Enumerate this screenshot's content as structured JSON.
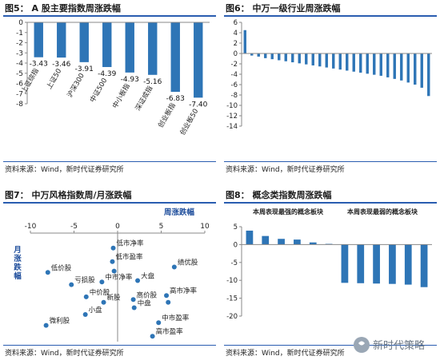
{
  "fig5": {
    "title": "图5： A 股主要指数周涨跌幅",
    "source": "资料来源：Wind，新时代证券研究所",
    "chart_data": {
      "type": "bar",
      "categories": [
        "上证综指",
        "上证50",
        "沪深300",
        "中证500",
        "中小板指",
        "深证成指",
        "创业板指",
        "创业板50"
      ],
      "values": [
        -3.43,
        -3.46,
        -3.91,
        -4.39,
        -4.93,
        -5.16,
        -6.83,
        -7.4
      ],
      "value_labels": [
        "-3.43",
        "-3.46",
        "-3.91",
        "-4.39",
        "-4.93",
        "-5.16",
        "-6.83",
        "-7.40"
      ],
      "ylim": [
        -8,
        0
      ],
      "yticks": [
        0,
        -1,
        -2,
        -3,
        -4,
        -5,
        -6,
        -7,
        -8
      ],
      "color": "#2e75b6"
    }
  },
  "fig6": {
    "title": "图6： 中万一级行业周涨跌幅",
    "source": "资料来源：Wind，新时代证券研究所",
    "chart_data": {
      "type": "bar",
      "categories": [
        "",
        "",
        "",
        "",
        "",
        "",
        "",
        "",
        "",
        "",
        "",
        "",
        "",
        "",
        "",
        "",
        "",
        "",
        "",
        "",
        "",
        "",
        "",
        "",
        "",
        "",
        "",
        ""
      ],
      "values": [
        4.5,
        -0.4,
        -0.6,
        -0.9,
        -1.1,
        -1.3,
        -1.5,
        -1.7,
        -1.9,
        -2.1,
        -2.3,
        -2.5,
        -2.7,
        -2.9,
        -3.1,
        -3.3,
        -3.5,
        -3.7,
        -3.9,
        -4.1,
        -4.3,
        -4.6,
        -4.9,
        -5.2,
        -5.6,
        -6.0,
        -6.6,
        -8.2
      ],
      "ylim": [
        -14,
        6
      ],
      "yticks": [
        6,
        4,
        2,
        0,
        -2,
        -4,
        -6,
        -8,
        -10,
        -12,
        -14
      ],
      "color": "#2e75b6"
    }
  },
  "fig7": {
    "title": "图7： 中万风格指数周/月涨跌幅",
    "source": "资料来源：Wind，新时代证券研究所",
    "chart_data": {
      "type": "scatter",
      "xlabel": "周涨跌幅",
      "ylabel": "月涨跌幅",
      "xlim": [
        -10,
        10
      ],
      "ylim": [
        -8,
        0
      ],
      "xticks": [
        -10,
        -5,
        0,
        5,
        10
      ],
      "points": [
        {
          "label": "低市净率",
          "x": -0.5,
          "y": -1.1
        },
        {
          "label": "低市盈率",
          "x": -0.6,
          "y": -2.1
        },
        {
          "label": "绩优股",
          "x": 6.5,
          "y": -2.5
        },
        {
          "label": "低价股",
          "x": -8.0,
          "y": -2.9
        },
        {
          "label": "亏损股",
          "x": -5.3,
          "y": -3.8
        },
        {
          "label": "中市净率",
          "x": -1.8,
          "y": -3.6
        },
        {
          "label": "大盘",
          "x": 2.3,
          "y": -3.5
        },
        {
          "label": "中价股",
          "x": -3.6,
          "y": -4.7
        },
        {
          "label": "高市净率",
          "x": 5.6,
          "y": -4.6
        },
        {
          "label": "新股",
          "x": -1.6,
          "y": -5.1
        },
        {
          "label": "高价股",
          "x": 1.8,
          "y": -4.9
        },
        {
          "label": "中盘",
          "x": 1.9,
          "y": -5.5
        },
        {
          "label": "小盘",
          "x": -3.7,
          "y": -6.0
        },
        {
          "label": "微利股",
          "x": -8.2,
          "y": -6.8
        },
        {
          "label": "中市盈率",
          "x": 4.7,
          "y": -6.6
        },
        {
          "label": "高市盈率",
          "x": 4.0,
          "y": -7.6
        },
        {
          "label": "(unlabeled)",
          "x": -0.4,
          "y": -2.8
        },
        {
          "label": "(unlabeled)",
          "x": 5.8,
          "y": -5.1
        }
      ],
      "color": "#2e75b6"
    }
  },
  "fig8": {
    "title": "图8： 概念类指数周涨跌幅",
    "source": "资料来源：Wind，新时代证券研究所",
    "chart_data": {
      "type": "bar",
      "groups": [
        "本周表现最强的概念板块",
        "本周表现最弱的概念板块"
      ],
      "categories": [
        "",
        "",
        "",
        "",
        "",
        "",
        "",
        "",
        "",
        "",
        "",
        ""
      ],
      "values": [
        3.9,
        2.4,
        1.6,
        1.4,
        0.6,
        0.2,
        -10.7,
        -10.8,
        -10.9,
        -11.0,
        -11.2,
        -11.9
      ],
      "ylim": [
        -20,
        5
      ],
      "yticks": [
        5,
        0,
        -5,
        -10,
        -15,
        -20
      ],
      "color": "#2e75b6"
    }
  },
  "watermark": {
    "text": "新时代策略"
  }
}
